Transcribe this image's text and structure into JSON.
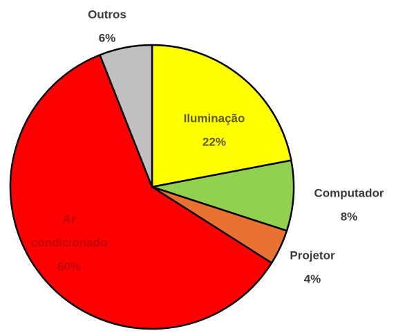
{
  "chart_data": {
    "type": "pie",
    "categories": [
      "Iluminação",
      "Computador",
      "Projetor",
      "Ar condicionado",
      "Outros"
    ],
    "values": [
      22,
      8,
      4,
      60,
      6
    ],
    "value_labels": [
      "22%",
      "8%",
      "4%",
      "60%",
      "6%"
    ],
    "colors": [
      "#ffff00",
      "#92d050",
      "#e97132",
      "#ff0000",
      "#c0c0c0"
    ]
  }
}
